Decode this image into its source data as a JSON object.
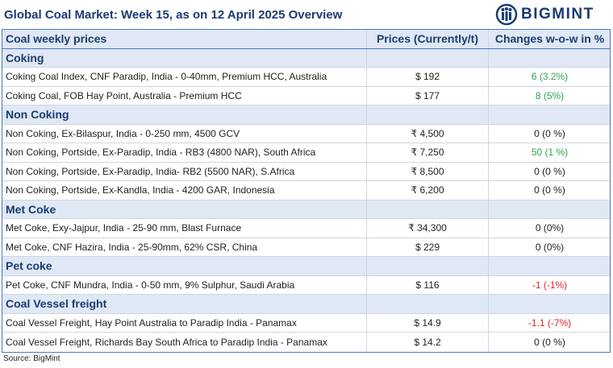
{
  "header": {
    "title": "Global Coal Market: Week 15, as on 12 April 2025 Overview",
    "logo": "BIGMINT"
  },
  "table": {
    "columns": [
      "Coal weekly prices",
      "Prices (Currently/t)",
      "Changes w-o-w in %"
    ],
    "sections": [
      {
        "name": "Coking",
        "rows": [
          {
            "item": "Coking Coal Index, CNF Paradip, India - 0-40mm, Premium HCC, Australia",
            "price": "$ 192",
            "change": "6 (3.2%)",
            "change_color": "#2ea44f"
          },
          {
            "item": "Coking Coal, FOB Hay Point, Australia - Premium HCC",
            "price": "$ 177",
            "change": "8 (5%)",
            "change_color": "#2ea44f"
          }
        ]
      },
      {
        "name": "Non Coking",
        "rows": [
          {
            "item": "Non Coking, Ex-Bilaspur, India - 0-250 mm, 4500 GCV",
            "price": "₹ 4,500",
            "change": "0 (0 %)",
            "change_color": "#222222"
          },
          {
            "item": "Non Coking, Portside, Ex-Paradip, India - RB3 (4800 NAR), South Africa",
            "price": "₹ 7,250",
            "change": "50 (1 %)",
            "change_color": "#2ea44f"
          },
          {
            "item": "Non Coking, Portside, Ex-Paradip, India- RB2 (5500 NAR), S.Africa",
            "price": "₹ 8,500",
            "change": "0 (0 %)",
            "change_color": "#222222"
          },
          {
            "item": "Non Coking, Portside, Ex-Kandla, India - 4200 GAR, Indonesia",
            "price": "₹ 6,200",
            "change": "0 (0 %)",
            "change_color": "#222222"
          }
        ]
      },
      {
        "name": "Met Coke",
        "rows": [
          {
            "item": "Met Coke, Exy-Jajpur, India - 25-90 mm, Blast Furnace",
            "price": "₹ 34,300",
            "change": "0 (0%)",
            "change_color": "#222222"
          },
          {
            "item": "Met Coke, CNF Hazira, India - 25-90mm, 62% CSR, China",
            "price": "$ 229",
            "change": "0 (0%)",
            "change_color": "#222222"
          }
        ]
      },
      {
        "name": "Pet coke",
        "rows": [
          {
            "item": "Pet Coke, CNF Mundra, India - 0-50 mm, 9% Sulphur, Saudi Arabia",
            "price": "$ 116",
            "change": "-1 (-1%)",
            "change_color": "#e0242b"
          }
        ]
      },
      {
        "name": "Coal Vessel freight",
        "rows": [
          {
            "item": "Coal Vessel Freight, Hay Point Australia to Paradip India - Panamax",
            "price": "$ 14.9",
            "change": "-1.1 (-7%)",
            "change_color": "#e0242b"
          },
          {
            "item": "Coal Vessel Freight, Richards Bay South Africa to Paradip India - Panamax",
            "price": "$ 14.2",
            "change": "0 (0 %)",
            "change_color": "#222222"
          }
        ]
      }
    ]
  },
  "footer": {
    "source": "Source: BigMint"
  }
}
